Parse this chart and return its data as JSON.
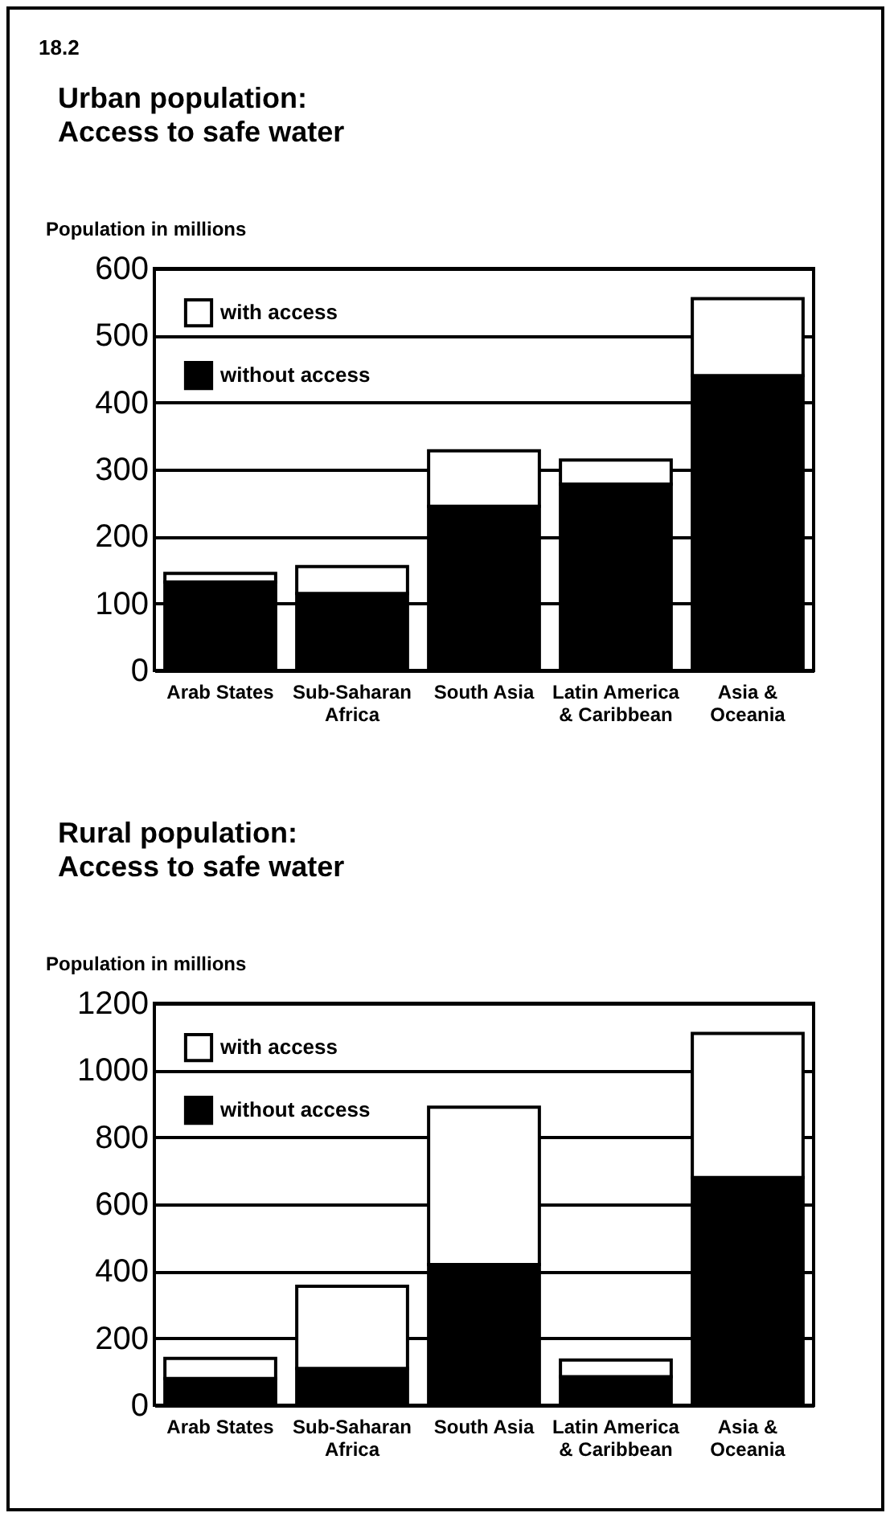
{
  "chart_data": [
    {
      "type": "bar",
      "title": "Urban population:\nAccess to safe water",
      "ylabel": "Population in millions",
      "annotations": [
        "18.2"
      ],
      "stacked": true,
      "categories": [
        "Arab States",
        "Sub-Saharan Africa",
        "South Asia",
        "Latin America & Caribbean",
        "Asia & Oceania"
      ],
      "series": [
        {
          "name": "without access",
          "color": "#000000",
          "values": [
            132,
            115,
            245,
            278,
            440
          ]
        },
        {
          "name": "with access",
          "color": "#ffffff",
          "values": [
            13,
            40,
            83,
            36,
            115
          ]
        }
      ],
      "ylim": [
        0,
        600
      ],
      "yticks": [
        0,
        100,
        200,
        300,
        400,
        500,
        600
      ],
      "grid": "y",
      "legend": "top left"
    },
    {
      "type": "bar",
      "title": "Rural population:\nAccess to safe water",
      "ylabel": "Population in millions",
      "stacked": true,
      "categories": [
        "Arab States",
        "Sub-Saharan Africa",
        "South Asia",
        "Latin America & Caribbean",
        "Asia & Oceania"
      ],
      "series": [
        {
          "name": "without access",
          "color": "#000000",
          "values": [
            80,
            110,
            420,
            85,
            680
          ]
        },
        {
          "name": "with access",
          "color": "#ffffff",
          "values": [
            60,
            245,
            470,
            50,
            430
          ]
        }
      ],
      "ylim": [
        0,
        1200
      ],
      "yticks": [
        0,
        200,
        400,
        600,
        800,
        1000,
        1200
      ],
      "grid": "y",
      "legend": "top left"
    }
  ]
}
